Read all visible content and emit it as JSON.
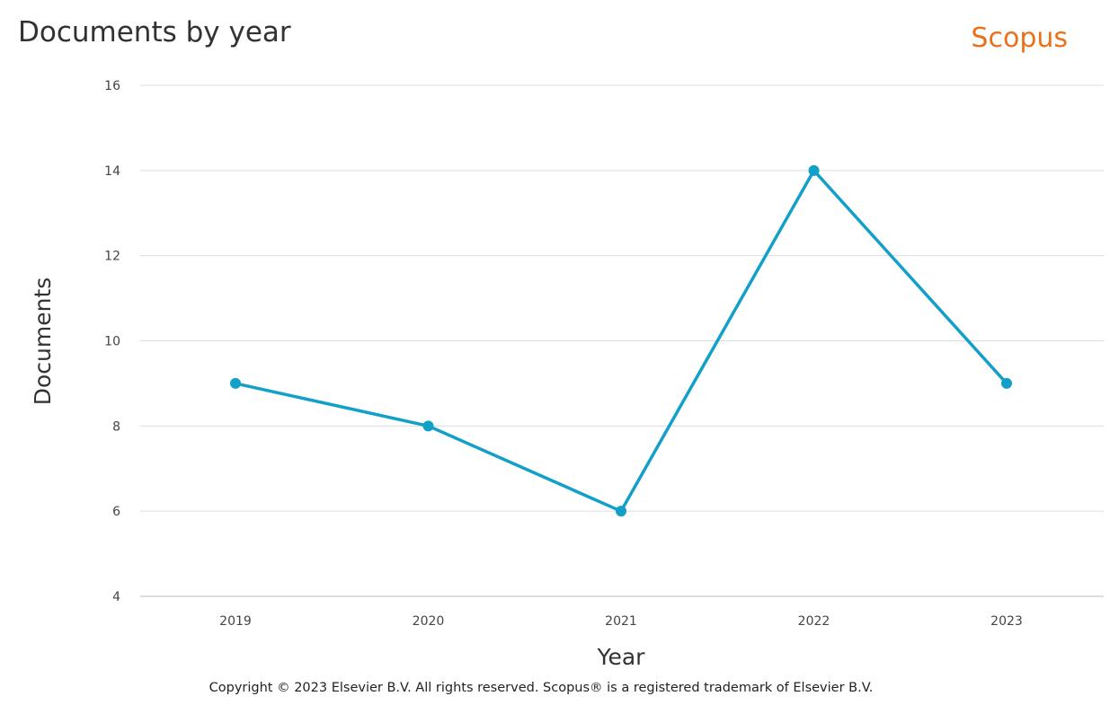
{
  "header": {
    "title": "Documents by year",
    "brand": "Scopus",
    "brand_color": "#e9711c"
  },
  "footer": {
    "copyright": "Copyright © 2023 Elsevier B.V. All rights reserved. Scopus® is a registered trademark of Elsevier B.V."
  },
  "chart_data": {
    "type": "line",
    "title": "Documents by year",
    "xlabel": "Year",
    "ylabel": "Documents",
    "categories": [
      "2019",
      "2020",
      "2021",
      "2022",
      "2023"
    ],
    "values": [
      9,
      8,
      6,
      14,
      9
    ],
    "ylim": [
      4,
      16
    ],
    "yticks": [
      "4",
      "6",
      "8",
      "10",
      "12",
      "14",
      "16"
    ],
    "grid": true,
    "legend": "none",
    "line_color": "#13a0c8"
  }
}
